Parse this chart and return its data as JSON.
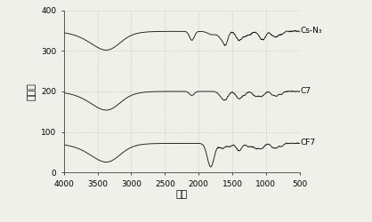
{
  "title": "",
  "xlabel": "波长",
  "ylabel": "透过率",
  "xlim": [
    4000,
    500
  ],
  "ylim": [
    0,
    400
  ],
  "xticks": [
    4000,
    3500,
    3000,
    2500,
    2000,
    1500,
    1000,
    500
  ],
  "yticks": [
    0,
    100,
    200,
    300,
    400
  ],
  "line_color": "#1a1a1a",
  "background_color": "#f0f0eb",
  "labels": [
    "Cs-N₃",
    "C7",
    "CF7"
  ],
  "offsets": [
    348,
    200,
    72
  ],
  "figsize": [
    4.18,
    2.5
  ],
  "dpi": 100
}
